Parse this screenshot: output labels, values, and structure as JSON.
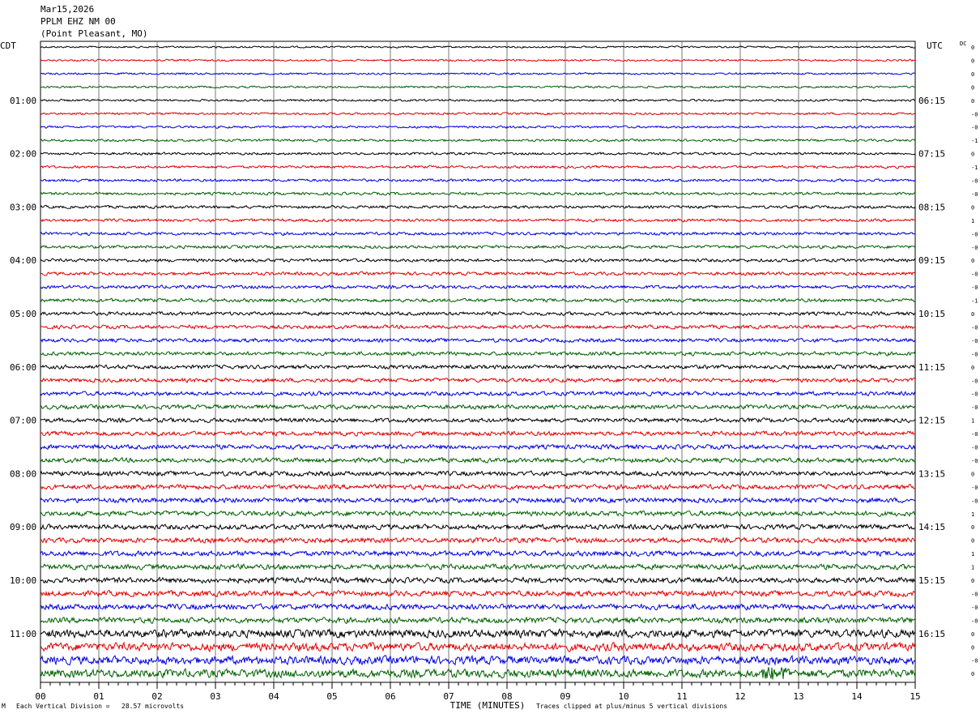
{
  "header": {
    "date": "Mar15,2026",
    "station": "PPLM EHZ NM 00",
    "location": "(Point Pleasant, MO)"
  },
  "chart_data": {
    "type": "line",
    "description_kind": "helicorder",
    "left_timezone": "CDT",
    "right_timezone": "UTC",
    "dc_header": "DC",
    "xlabel": "TIME (MINUTES)",
    "xlim": [
      0,
      15
    ],
    "x_ticks": [
      "00",
      "01",
      "02",
      "03",
      "04",
      "05",
      "06",
      "07",
      "08",
      "09",
      "10",
      "11",
      "12",
      "13",
      "14",
      "15"
    ],
    "left_hour_labels": [
      "01:00",
      "02:00",
      "03:00",
      "04:00",
      "05:00",
      "06:00",
      "07:00",
      "08:00",
      "09:00",
      "10:00",
      "11:00"
    ],
    "right_hour_labels": [
      "06:15",
      "07:15",
      "08:15",
      "09:15",
      "10:15",
      "11:15",
      "12:15",
      "13:15",
      "14:15",
      "15:15",
      "16:15"
    ],
    "lines_per_hour": 4,
    "line_count": 48,
    "trace_colors": [
      "#000000",
      "#e00000",
      "#0000e0",
      "#006000"
    ],
    "dc_offsets": [
      "0",
      "0",
      "0",
      "0",
      "0",
      "-0",
      "-0",
      "-1",
      "0",
      "-1",
      "-0",
      "-0",
      "0",
      "1",
      "-0",
      "-0",
      "0",
      "-0",
      "-0",
      "-1",
      "0",
      "-0",
      "-0",
      "-0",
      "0",
      "-0",
      "-0",
      "-0",
      "1",
      "-0",
      "-0",
      "-0",
      "0",
      "-0",
      "-0",
      "1",
      "0",
      "0",
      "1",
      "1",
      "0",
      "-0",
      "-0",
      "-0",
      "0",
      "0",
      "-0",
      "0"
    ],
    "clip_note": "Traces clipped at plus/minus 5 vertical divisions",
    "scale_note": "Each Vertical Division =   28.57 microvolts",
    "corner_mark": "M"
  }
}
